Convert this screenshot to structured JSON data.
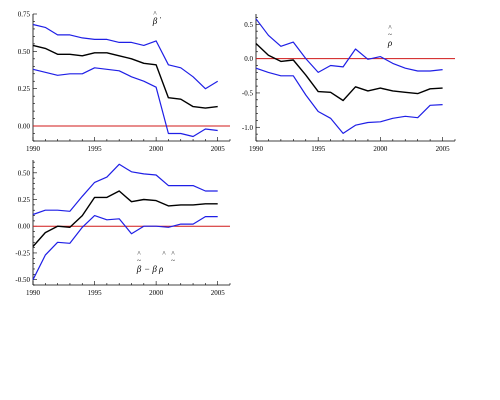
{
  "colors": {
    "band": "#1f1fe6",
    "estimate": "#000000",
    "zero": "#d01818",
    "axis": "#000000"
  },
  "chart_data": [
    {
      "type": "line",
      "title": "",
      "xlabel": "",
      "ylabel": "",
      "annotation": {
        "hat": "^",
        "base": "β",
        "suffix": "'"
      },
      "xlim": [
        1990,
        2006
      ],
      "ylim": [
        -0.1,
        0.75
      ],
      "xticks": [
        {
          "v": 1990,
          "t": "1990"
        },
        {
          "v": 1995,
          "t": "1995"
        },
        {
          "v": 2000,
          "t": "2000"
        },
        {
          "v": 2005,
          "t": "2005"
        }
      ],
      "yticks": [
        {
          "v": 0,
          "t": "0.00"
        },
        {
          "v": 0.25,
          "t": "0.25"
        },
        {
          "v": 0.5,
          "t": "0.50"
        },
        {
          "v": 0.75,
          "t": "0.75"
        }
      ],
      "reference_line": 0,
      "x": [
        1990,
        1991,
        1992,
        1993,
        1994,
        1995,
        1996,
        1997,
        1998,
        1999,
        2000,
        2001,
        2002,
        2003,
        2004,
        2005
      ],
      "series": [
        {
          "role": "upper",
          "values": [
            0.68,
            0.66,
            0.61,
            0.61,
            0.59,
            0.58,
            0.58,
            0.56,
            0.56,
            0.54,
            0.57,
            0.41,
            0.39,
            0.33,
            0.25,
            0.3
          ]
        },
        {
          "role": "estimate",
          "values": [
            0.54,
            0.52,
            0.48,
            0.48,
            0.47,
            0.49,
            0.49,
            0.47,
            0.45,
            0.42,
            0.41,
            0.19,
            0.18,
            0.13,
            0.12,
            0.13
          ]
        },
        {
          "role": "lower",
          "values": [
            0.38,
            0.36,
            0.34,
            0.35,
            0.35,
            0.39,
            0.38,
            0.37,
            0.33,
            0.3,
            0.26,
            -0.05,
            -0.05,
            -0.07,
            -0.02,
            -0.03
          ]
        }
      ]
    },
    {
      "type": "line",
      "title": "",
      "xlabel": "",
      "ylabel": "",
      "annotation": {
        "hat": "^",
        "base": "ρ",
        "mark": "~"
      },
      "xlim": [
        1990,
        2006
      ],
      "ylim": [
        -1.2,
        0.65
      ],
      "xticks": [
        {
          "v": 1990,
          "t": "1990"
        },
        {
          "v": 1995,
          "t": "1995"
        },
        {
          "v": 2000,
          "t": "2000"
        },
        {
          "v": 2005,
          "t": "2005"
        }
      ],
      "yticks": [
        {
          "v": -1,
          "t": "-1.0"
        },
        {
          "v": -0.5,
          "t": "-0.5"
        },
        {
          "v": 0,
          "t": "0.0"
        },
        {
          "v": 0.5,
          "t": "0.5"
        }
      ],
      "reference_line": 0,
      "x": [
        1990,
        1991,
        1992,
        1993,
        1994,
        1995,
        1996,
        1997,
        1998,
        1999,
        2000,
        2001,
        2002,
        2003,
        2004,
        2005
      ],
      "series": [
        {
          "role": "upper",
          "values": [
            0.58,
            0.34,
            0.18,
            0.24,
            0.0,
            -0.2,
            -0.1,
            -0.12,
            0.14,
            -0.01,
            0.03,
            -0.07,
            -0.14,
            -0.18,
            -0.18,
            -0.16
          ]
        },
        {
          "role": "estimate",
          "values": [
            0.22,
            0.05,
            -0.04,
            -0.02,
            -0.24,
            -0.48,
            -0.49,
            -0.61,
            -0.41,
            -0.47,
            -0.43,
            -0.47,
            -0.49,
            -0.51,
            -0.44,
            -0.43
          ]
        },
        {
          "role": "lower",
          "values": [
            -0.14,
            -0.2,
            -0.25,
            -0.25,
            -0.53,
            -0.77,
            -0.87,
            -1.09,
            -0.97,
            -0.93,
            -0.92,
            -0.87,
            -0.84,
            -0.86,
            -0.68,
            -0.67
          ]
        }
      ]
    },
    {
      "type": "line",
      "title": "",
      "xlabel": "",
      "ylabel": "",
      "annotation": {
        "part1": "β",
        "part2": " − β ρ",
        "hat": "^",
        "mark": "~"
      },
      "xlim": [
        1990,
        2006
      ],
      "ylim": [
        -0.55,
        0.62
      ],
      "xticks": [
        {
          "v": 1990,
          "t": "1990"
        },
        {
          "v": 1995,
          "t": "1995"
        },
        {
          "v": 2000,
          "t": "2000"
        },
        {
          "v": 2005,
          "t": "2005"
        }
      ],
      "yticks": [
        {
          "v": -0.5,
          "t": "-0.50"
        },
        {
          "v": -0.25,
          "t": "-0.25"
        },
        {
          "v": 0,
          "t": "0.00"
        },
        {
          "v": 0.25,
          "t": "0.25"
        },
        {
          "v": 0.5,
          "t": "0.50"
        }
      ],
      "reference_line": 0,
      "x": [
        1990,
        1991,
        1992,
        1993,
        1994,
        1995,
        1996,
        1997,
        1998,
        1999,
        2000,
        2001,
        2002,
        2003,
        2004,
        2005
      ],
      "series": [
        {
          "role": "upper",
          "values": [
            0.11,
            0.15,
            0.15,
            0.14,
            0.28,
            0.41,
            0.46,
            0.58,
            0.51,
            0.49,
            0.48,
            0.38,
            0.38,
            0.38,
            0.33,
            0.33
          ]
        },
        {
          "role": "estimate",
          "values": [
            -0.19,
            -0.06,
            0.0,
            -0.01,
            0.1,
            0.27,
            0.27,
            0.33,
            0.23,
            0.25,
            0.24,
            0.19,
            0.2,
            0.2,
            0.21,
            0.21
          ]
        },
        {
          "role": "lower",
          "values": [
            -0.5,
            -0.27,
            -0.15,
            -0.16,
            -0.01,
            0.1,
            0.06,
            0.07,
            -0.07,
            0.0,
            0.0,
            -0.01,
            0.02,
            0.02,
            0.09,
            0.09
          ]
        }
      ]
    }
  ]
}
